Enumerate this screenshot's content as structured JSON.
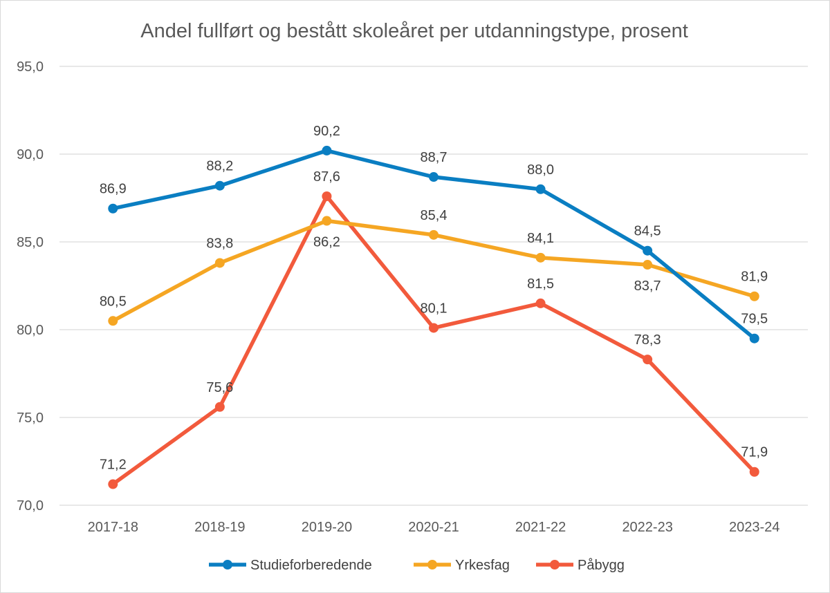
{
  "chart_data": {
    "type": "line",
    "title": "Andel fullført og bestått skoleåret per utdanningstype, prosent",
    "categories": [
      "2017-18",
      "2018-19",
      "2019-20",
      "2020-21",
      "2021-22",
      "2022-23",
      "2023-24"
    ],
    "y_ticks": [
      "70,0",
      "75,0",
      "80,0",
      "85,0",
      "90,0",
      "95,0"
    ],
    "ylim": [
      70,
      95
    ],
    "grid": true,
    "legend_position": "bottom",
    "series": [
      {
        "name": "Studieforberedende",
        "color": "#0a7ec2",
        "values": [
          86.9,
          88.2,
          90.2,
          88.7,
          88.0,
          84.5,
          79.5
        ],
        "labels": [
          "86,9",
          "88,2",
          "90,2",
          "88,7",
          "88,0",
          "84,5",
          "79,5"
        ]
      },
      {
        "name": "Yrkesfag",
        "color": "#f5a623",
        "values": [
          80.5,
          83.8,
          86.2,
          85.4,
          84.1,
          83.7,
          81.9
        ],
        "labels": [
          "80,5",
          "83,8",
          "86,2",
          "85,4",
          "84,1",
          "83,7",
          "81,9"
        ]
      },
      {
        "name": "Påbygg",
        "color": "#f25a3c",
        "values": [
          71.2,
          75.6,
          87.6,
          80.1,
          81.5,
          78.3,
          71.9
        ],
        "labels": [
          "71,2",
          "75,6",
          "87,6",
          "80,1",
          "81,5",
          "78,3",
          "71,9"
        ]
      }
    ]
  }
}
